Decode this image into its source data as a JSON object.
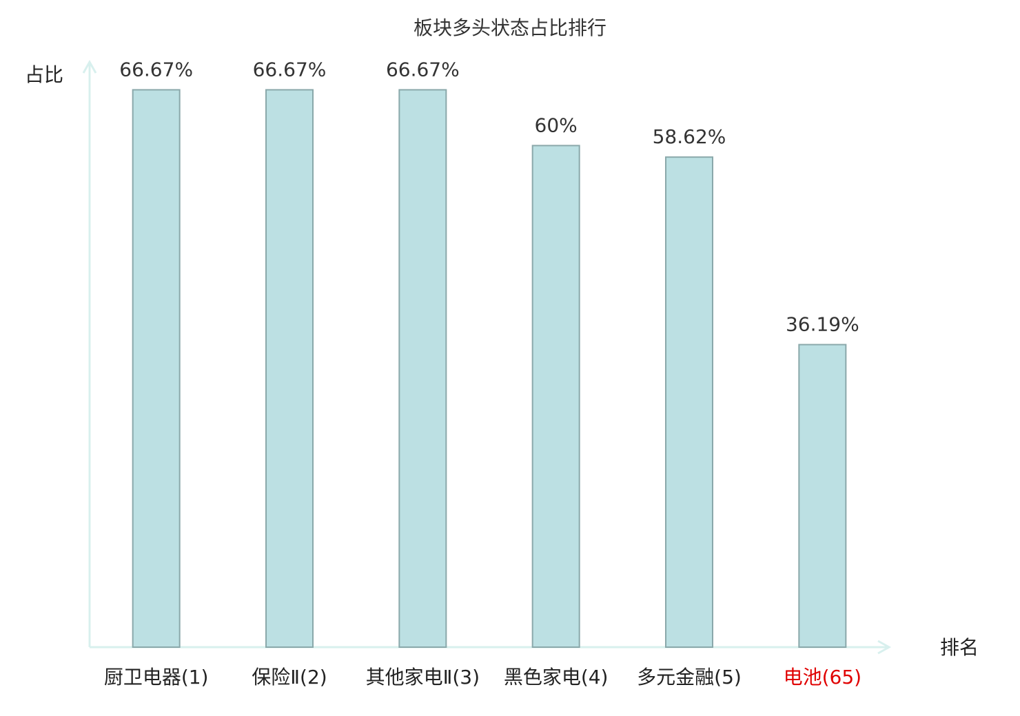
{
  "chart_data": {
    "type": "bar",
    "title": "板块多头状态占比排行",
    "y_label": "占比",
    "x_label": "排名",
    "categories": [
      "厨卫电器(1)",
      "保险Ⅱ(2)",
      "其他家电Ⅱ(3)",
      "黑色家电(4)",
      "多元金融(5)",
      "电池(65)"
    ],
    "category_label_colors": [
      "#222222",
      "#222222",
      "#222222",
      "#222222",
      "#222222",
      "#e00000"
    ],
    "values": [
      66.67,
      66.67,
      66.67,
      60,
      58.62,
      36.19
    ],
    "value_labels": [
      "66.67%",
      "66.67%",
      "66.67%",
      "60%",
      "58.62%",
      "36.19%"
    ],
    "color": "#bce0e3",
    "edge_color": "#8aa8aa",
    "axis_color": "#d8f0ee",
    "ylim": [
      0,
      70
    ]
  }
}
